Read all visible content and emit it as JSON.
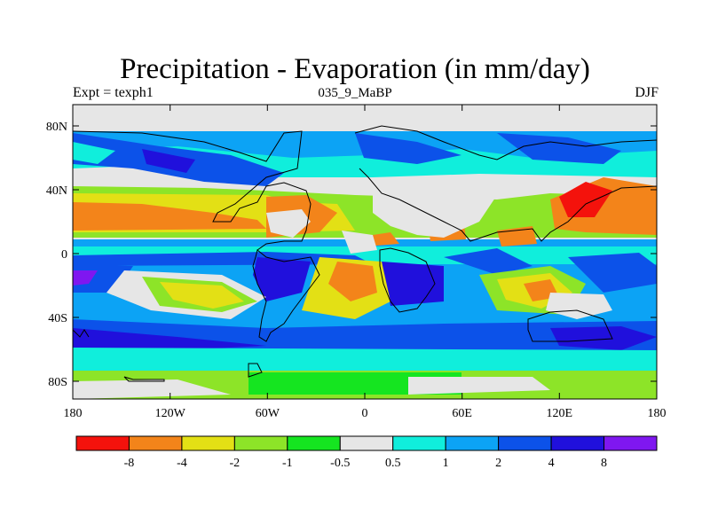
{
  "title": "Precipitation - Evaporation (in mm/day)",
  "experiment": "Expt = texph1",
  "period": "035_9_MaBP",
  "season": "DJF",
  "map": {
    "projection": "cylindrical equidistant",
    "lon_range": [
      -180,
      180
    ],
    "lat_range": [
      -90,
      90
    ],
    "x_ticks": [
      "180",
      "120W",
      "60W",
      "0",
      "60E",
      "120E",
      "180"
    ],
    "y_ticks": [
      "80N",
      "40N",
      "0",
      "40S",
      "80S"
    ]
  },
  "legend": {
    "colors": [
      "#f4120c",
      "#f3841a",
      "#e3e015",
      "#8de428",
      "#15e520",
      "#e6e6e6",
      "#10eedc",
      "#0ca3f5",
      "#0c52e9",
      "#2010dc",
      "#7f17f0"
    ],
    "labels": [
      "-8",
      "-4",
      "-2",
      "-1",
      "-0.5",
      "0.5",
      "1",
      "2",
      "4",
      "8"
    ]
  }
}
